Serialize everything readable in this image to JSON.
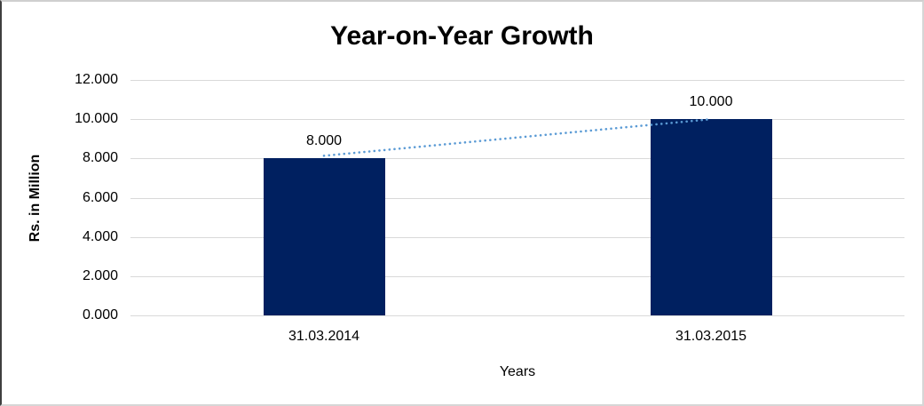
{
  "chart_data": {
    "type": "bar",
    "title": "Year-on-Year Growth",
    "xlabel": "Years",
    "ylabel": "Rs. in Million",
    "categories": [
      "31.03.2014",
      "31.03.2015"
    ],
    "values": [
      8,
      10
    ],
    "data_labels": [
      "8.000",
      "10.000"
    ],
    "ylim": [
      0,
      12
    ],
    "ytick_values": [
      0,
      2,
      4,
      6,
      8,
      10,
      12
    ],
    "ytick_labels": [
      "0.000",
      "2.000",
      "4.000",
      "6.000",
      "8.000",
      "10.000",
      "12.000"
    ],
    "grid": true,
    "legend": "none",
    "bar_color": "#002060",
    "gridline_color": "#d9d9d9",
    "trendline": {
      "type": "linear",
      "style": "dotted",
      "color": "#5b9bd5"
    }
  }
}
